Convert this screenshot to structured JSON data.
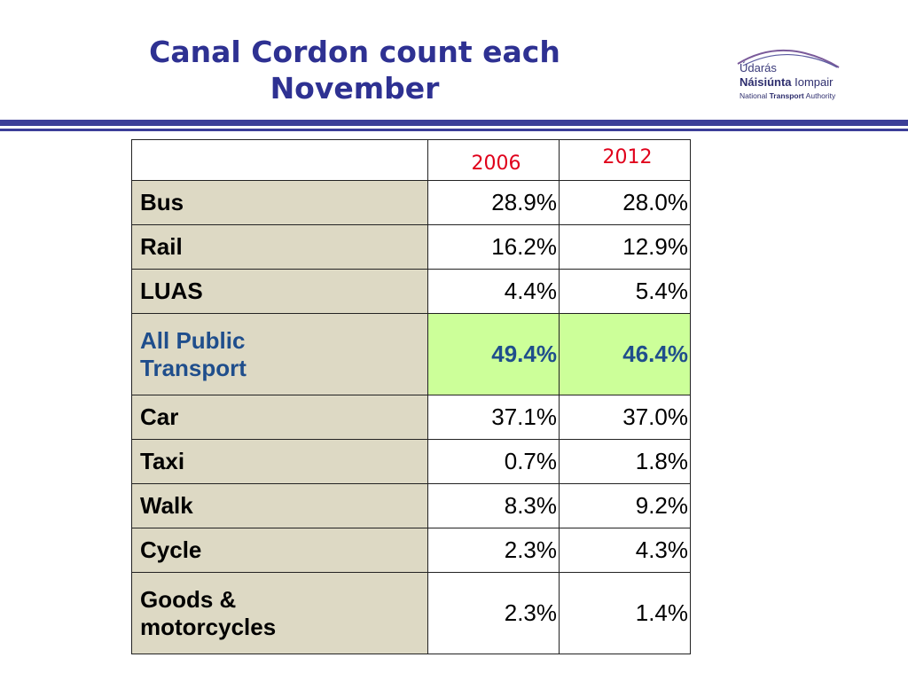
{
  "title": "Canal Cordon count each November",
  "title_line1": "Canal Cordon count each",
  "title_line2": "November",
  "logo": {
    "line1": "Údarás",
    "line2_bold": "Náisiúnta",
    "line2_rest": "Iompair",
    "line3_pre": "National",
    "line3_bold": "Transport",
    "line3_post": "Authority"
  },
  "table": {
    "years": [
      "2006",
      "2012"
    ],
    "rows": [
      {
        "label": "Bus",
        "v2006": "28.9%",
        "v2012": "28.0%"
      },
      {
        "label": "Rail",
        "v2006": "16.2%",
        "v2012": "12.9%"
      },
      {
        "label": "LUAS",
        "v2006": "4.4%",
        "v2012": "5.4%"
      },
      {
        "label_line1": "All Public",
        "label_line2": "Transport",
        "v2006": "49.4%",
        "v2012": "46.4%"
      },
      {
        "label": "Car",
        "v2006": "37.1%",
        "v2012": "37.0%"
      },
      {
        "label": "Taxi",
        "v2006": "0.7%",
        "v2012": "1.8%"
      },
      {
        "label": "Walk",
        "v2006": "8.3%",
        "v2012": "9.2%"
      },
      {
        "label": "Cycle",
        "v2006": "2.3%",
        "v2012": "4.3%"
      },
      {
        "label_line1": "Goods &",
        "label_line2": "motorcycles",
        "v2006": "2.3%",
        "v2012": "1.4%"
      }
    ]
  },
  "colors": {
    "title": "#2e3192",
    "rule": "#3c3e98",
    "label_bg": "#ddd9c4",
    "highlight_bg": "#ccff99",
    "highlight_text": "#1f4e8c",
    "year_text": "#e0001b"
  }
}
